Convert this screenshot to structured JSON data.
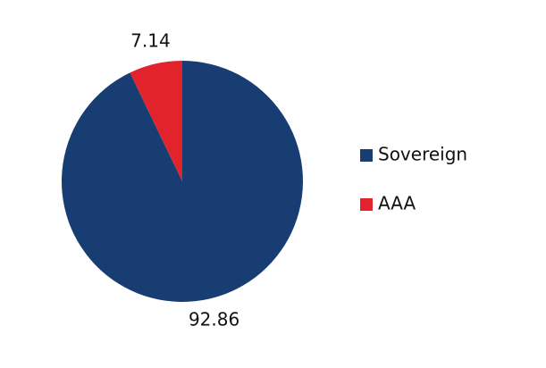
{
  "chart_data": {
    "type": "pie",
    "categories": [
      "Sovereign",
      "AAA"
    ],
    "values": [
      92.86,
      7.14
    ],
    "colors": [
      "#173d72",
      "#e3232b"
    ],
    "legend": "right"
  }
}
